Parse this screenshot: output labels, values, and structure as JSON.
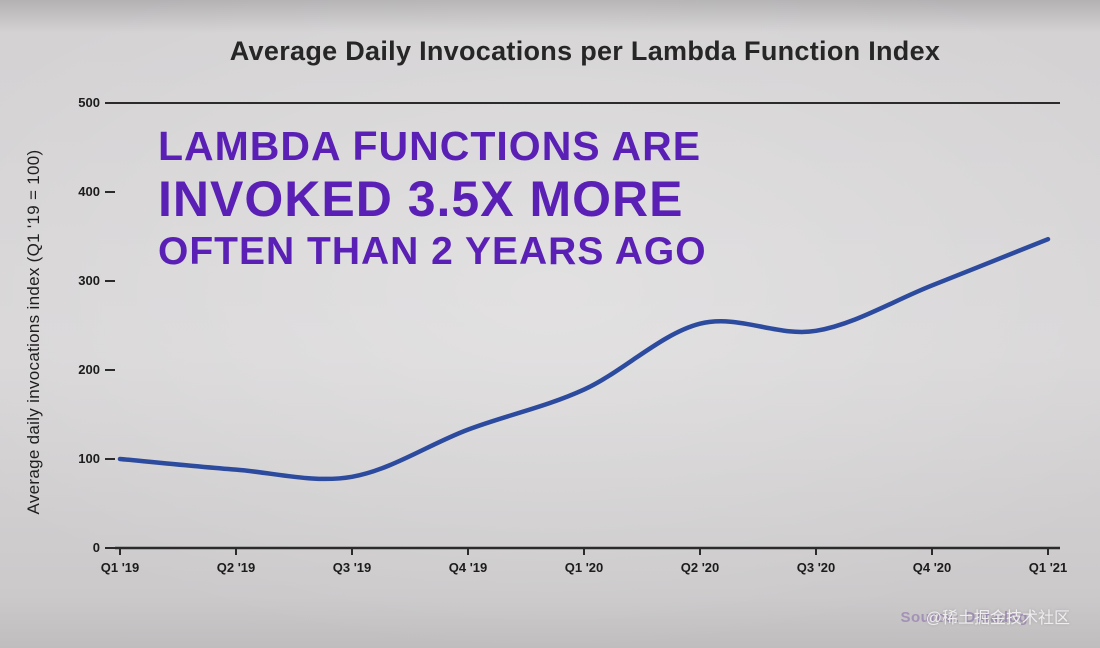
{
  "title": "Average Daily Invocations per Lambda Function Index",
  "y_axis_label": "Average daily invocations index (Q1 '19 = 100)",
  "annotation": {
    "line1": "LAMBDA FUNCTIONS ARE",
    "line2": "INVOKED 3.5X MORE",
    "line3": "OFTEN THAN 2 YEARS AGO"
  },
  "source": "Source: Datadog",
  "watermark": "@稀土掘金技术社区",
  "colors": {
    "line": "#2c4a9e",
    "annotation": "#5a1fb5",
    "axis": "#2b2b2b"
  },
  "chart_data": {
    "type": "line",
    "title": "Average Daily Invocations per Lambda Function Index",
    "xlabel": "",
    "ylabel": "Average daily invocations index (Q1 '19 = 100)",
    "categories": [
      "Q1 '19",
      "Q2 '19",
      "Q3 '19",
      "Q4 '19",
      "Q1 '20",
      "Q2 '20",
      "Q3 '20",
      "Q4 '20",
      "Q1 '21"
    ],
    "values": [
      100,
      88,
      80,
      133,
      178,
      252,
      244,
      295,
      347
    ],
    "y_ticks": [
      0,
      100,
      200,
      300,
      400,
      500
    ],
    "ylim": [
      0,
      500
    ],
    "grid": false,
    "legend": false,
    "series_name": "Average daily invocations index"
  }
}
